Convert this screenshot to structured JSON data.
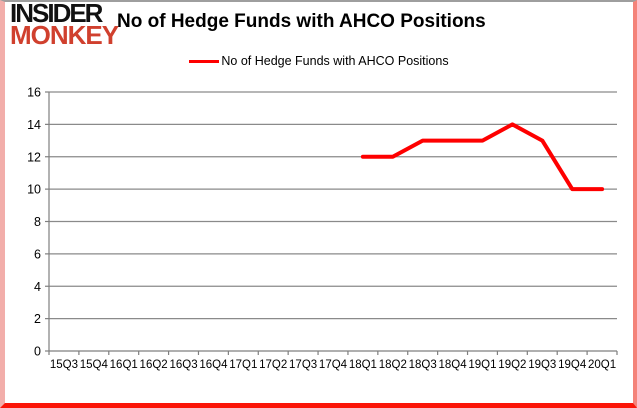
{
  "logo": {
    "line1": "INSIDER",
    "line2": "MONKEY"
  },
  "header": {
    "title": "No of Hedge Funds with AHCO Positions"
  },
  "legend": {
    "label": "No of Hedge Funds with AHCO Positions"
  },
  "colors": {
    "line": "#fe0000",
    "logo_red": "#d0402e",
    "grid": "#8a8a8a",
    "axis": "#7f7f7f",
    "text": "#000000",
    "frame_red": "#fb1507",
    "frame_pink": "#f2aeaa"
  },
  "chart_data": {
    "type": "line",
    "title": "No of Hedge Funds with AHCO Positions",
    "categories": [
      "15Q3",
      "15Q4",
      "16Q1",
      "16Q2",
      "16Q3",
      "16Q4",
      "17Q1",
      "17Q2",
      "17Q3",
      "17Q4",
      "18Q1",
      "18Q2",
      "18Q3",
      "18Q4",
      "19Q1",
      "19Q2",
      "19Q3",
      "19Q4",
      "20Q1"
    ],
    "series": [
      {
        "name": "No of Hedge Funds with AHCO Positions",
        "values": [
          null,
          null,
          null,
          null,
          null,
          null,
          null,
          null,
          null,
          null,
          12,
          12,
          13,
          13,
          13,
          14,
          13,
          10,
          10
        ]
      }
    ],
    "xlabel": "",
    "ylabel": "",
    "ylim": [
      0,
      16
    ],
    "ytick_step": 2,
    "yticks": [
      0,
      2,
      4,
      6,
      8,
      10,
      12,
      14,
      16
    ],
    "grid": true,
    "legend_position": "top",
    "line_color": "#fe0000",
    "grid_color": "#8a8a8a",
    "axis_color": "#7f7f7f"
  }
}
